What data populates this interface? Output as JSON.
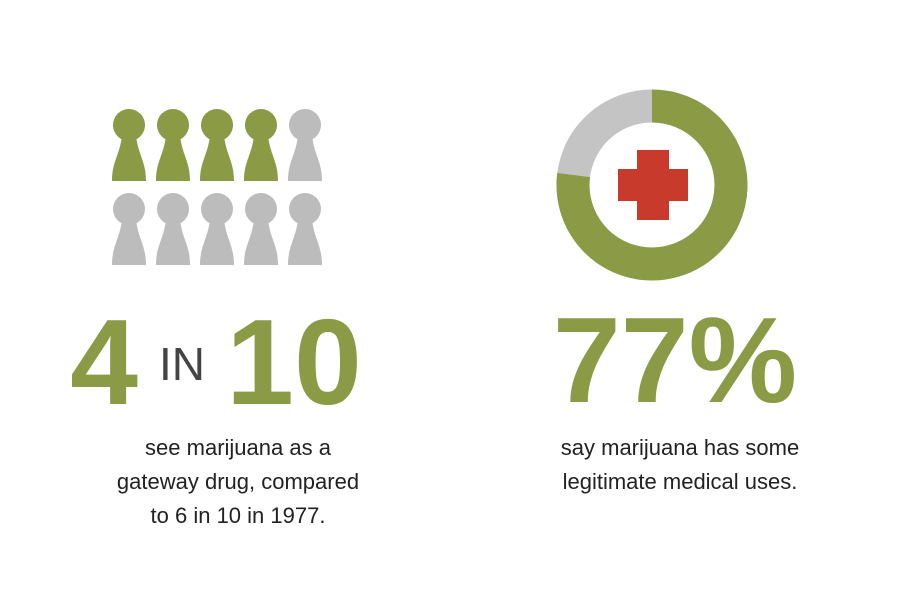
{
  "chart_data": [
    {
      "type": "pictograph",
      "value": 4,
      "total": 10,
      "connector": "IN",
      "caption_lines": [
        "see marijuana as a",
        "gateway drug, compared",
        "to 6 in 10 in 1977."
      ],
      "color": "#8a9a45",
      "empty_color": "#bcbcbc"
    },
    {
      "type": "donut",
      "value": 77,
      "value_label": "77%",
      "caption_lines": [
        "say marijuana has some",
        "legitimate medical uses."
      ],
      "color": "#8a9a45",
      "empty_color": "#c4c4c4"
    }
  ]
}
